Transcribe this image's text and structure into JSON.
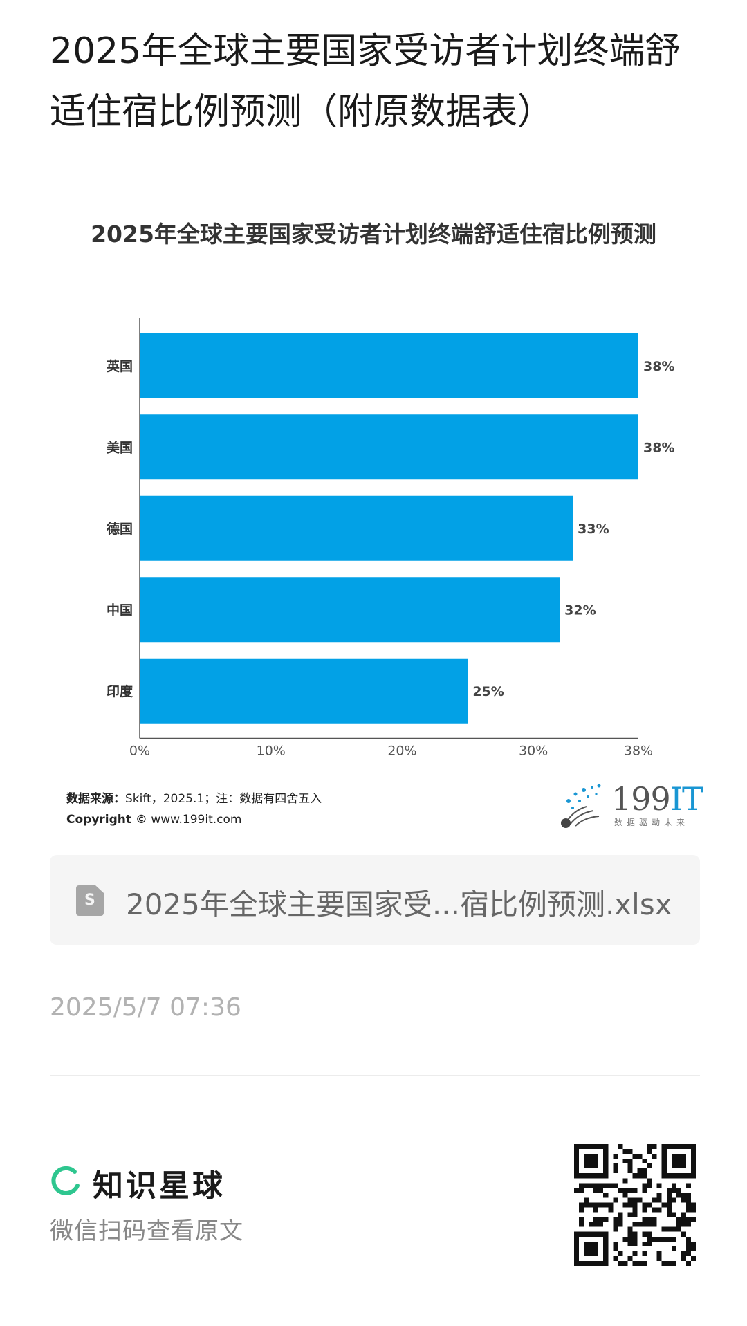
{
  "page": {
    "title": "2025年全球主要国家受访者计划终端舒适住宿比例预测（附原数据表）"
  },
  "chart_data": {
    "type": "bar",
    "orientation": "horizontal",
    "title": "2025年全球主要国家受访者计划终端舒适住宿比例预测",
    "categories": [
      "英国",
      "美国",
      "德国",
      "中国",
      "印度"
    ],
    "values": [
      38,
      38,
      33,
      32,
      25
    ],
    "value_labels": [
      "38%",
      "38%",
      "33%",
      "32%",
      "25%"
    ],
    "x_ticks": [
      "0%",
      "10%",
      "20%",
      "30%",
      "38%"
    ],
    "x_tick_values": [
      0,
      10,
      20,
      30,
      38
    ],
    "xlim": [
      0,
      38
    ],
    "bar_color": "#02a1e6",
    "grid": false
  },
  "source": {
    "label": "数据来源：",
    "text": "Skift，2025.1；注：数据有四舍五入",
    "copyright_label": "Copyright ©",
    "copyright_text": " www.199it.com"
  },
  "logo": {
    "text_num": "199",
    "text_it": "IT",
    "tagline": "数据驱动未来",
    "accent_color": "#1996d3"
  },
  "file": {
    "icon": "spreadsheet-file-icon",
    "name": "2025年全球主要国家受...宿比例预测.xlsx"
  },
  "timestamp": "2025/5/7 07:36",
  "brand": {
    "name": "知识星球",
    "hint": "微信扫码查看原文",
    "color": "#2ec68f"
  }
}
